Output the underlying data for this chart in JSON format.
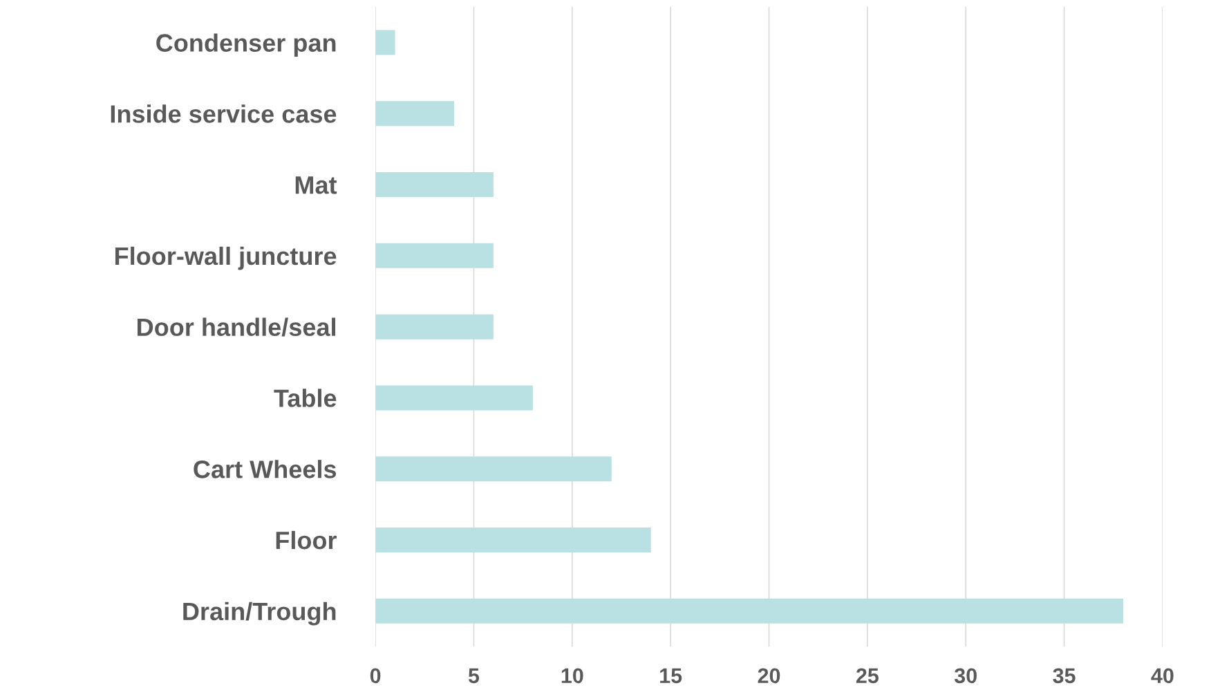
{
  "chart_data": {
    "type": "bar",
    "orientation": "horizontal",
    "categories": [
      "Condenser pan",
      "Inside service case",
      "Mat",
      "Floor-wall juncture",
      "Door handle/seal",
      "Table",
      "Cart Wheels",
      "Floor",
      "Drain/Trough"
    ],
    "values": [
      1,
      4,
      6,
      6,
      6,
      8,
      12,
      14,
      38
    ],
    "color": "#b9e0e3",
    "xlim": [
      0,
      40
    ],
    "xticks": [
      0,
      5,
      10,
      15,
      20,
      25,
      30,
      35,
      40
    ],
    "grid": "x"
  }
}
